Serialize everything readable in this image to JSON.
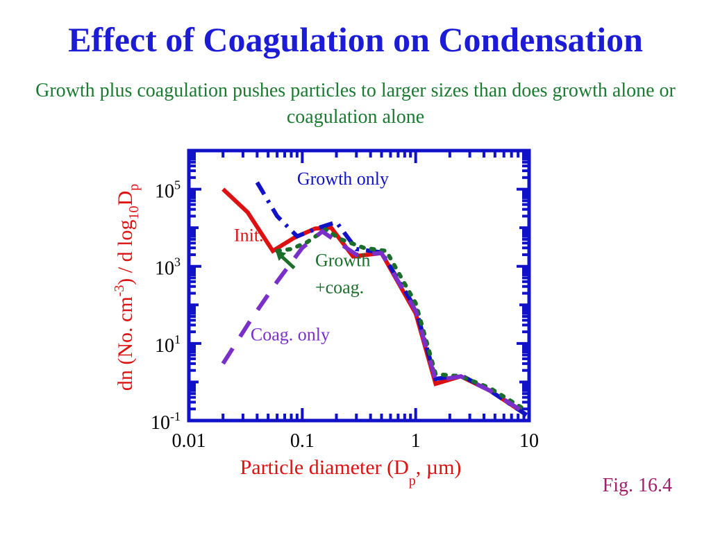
{
  "slide": {
    "title": "Effect of Coagulation on Condensation",
    "subtitle": "Growth plus coagulation pushes particles to larger sizes than does growth alone or coagulation alone",
    "figure_label": "Fig. 16.4",
    "colors": {
      "title": "#1c1cd6",
      "subtitle": "#1a7a30",
      "figure_label": "#a0206c",
      "axis": "#1111c8",
      "ylabel": "#dd1111",
      "xlabel": "#dd1111"
    }
  },
  "chart_data": {
    "type": "line",
    "xscale": "log",
    "yscale": "log",
    "xlim": [
      0.01,
      10
    ],
    "ylim": [
      0.1,
      1000000
    ],
    "x_ticks": [
      {
        "value": 0.01,
        "label": "0.01"
      },
      {
        "value": 0.1,
        "label": "0.1"
      },
      {
        "value": 1,
        "label": "1"
      },
      {
        "value": 10,
        "label": "10"
      }
    ],
    "y_ticks": [
      {
        "value": 0.1,
        "base": "10",
        "exp": "-1"
      },
      {
        "value": 10,
        "base": "10",
        "exp": "1"
      },
      {
        "value": 1000,
        "base": "10",
        "exp": "3"
      },
      {
        "value": 100000,
        "base": "10",
        "exp": "5"
      }
    ],
    "xlabel": {
      "main": "Particle diameter (D",
      "sub": "p",
      "tail": ", µm)"
    },
    "ylabel": {
      "p1": "dn (No.  cm",
      "sup": "-3",
      "p2": ") / d log",
      "sub1": "10",
      "p3": "D",
      "sub2": "p"
    },
    "series": [
      {
        "name": "Init.",
        "color": "#dd1111",
        "dash": "solid",
        "x": [
          0.02,
          0.033,
          0.055,
          0.085,
          0.13,
          0.18,
          0.28,
          0.5,
          1.0,
          1.5,
          2.5,
          4.5,
          9.5
        ],
        "y": [
          100000,
          25000,
          2500,
          5500,
          9500,
          10000,
          1800,
          2200,
          60,
          0.9,
          1.4,
          0.6,
          0.14
        ]
      },
      {
        "name": "Growth only",
        "color": "#1111c8",
        "dash": "dash-dot",
        "x": [
          0.04,
          0.06,
          0.09,
          0.14,
          0.2,
          0.3,
          0.5,
          1.0,
          1.5,
          2.5,
          4.5,
          9.5
        ],
        "y": [
          150000,
          20000,
          6000,
          10000,
          14000,
          2800,
          2300,
          80,
          1.2,
          1.5,
          0.6,
          0.14
        ]
      },
      {
        "name": "Growth\n+coag.",
        "color": "#1a6e2a",
        "dash": "dotted",
        "x": [
          0.06,
          0.08,
          0.11,
          0.16,
          0.22,
          0.35,
          0.55,
          1.0,
          1.5,
          2.5,
          4.5,
          9.5
        ],
        "y": [
          2500,
          2800,
          4200,
          9000,
          5000,
          3000,
          2500,
          110,
          1.6,
          1.4,
          0.7,
          0.18
        ]
      },
      {
        "name": "Coag. only",
        "color": "#7a30c8",
        "dash": "dashed",
        "x": [
          0.02,
          0.035,
          0.06,
          0.1,
          0.15,
          0.2,
          0.3,
          0.5,
          1.0,
          1.5,
          2.5,
          4.5,
          9.5
        ],
        "y": [
          3,
          40,
          400,
          3000,
          8000,
          4500,
          2000,
          2200,
          70,
          1.1,
          1.4,
          0.6,
          0.15
        ]
      }
    ],
    "annotations": [
      {
        "text": "Growth only",
        "color": "#1111c8",
        "x": 0.09,
        "y": 130000
      },
      {
        "text": "Init.",
        "color": "#dd1111",
        "x": 0.025,
        "y": 4500
      },
      {
        "text": "Growth",
        "color": "#1a6e2a",
        "x": 0.13,
        "y": 1000
      },
      {
        "text": "+coag.",
        "color": "#1a6e2a",
        "x": 0.13,
        "y": 200
      },
      {
        "text": "Coag. only",
        "color": "#7a30c8",
        "x": 0.035,
        "y": 12
      }
    ]
  }
}
